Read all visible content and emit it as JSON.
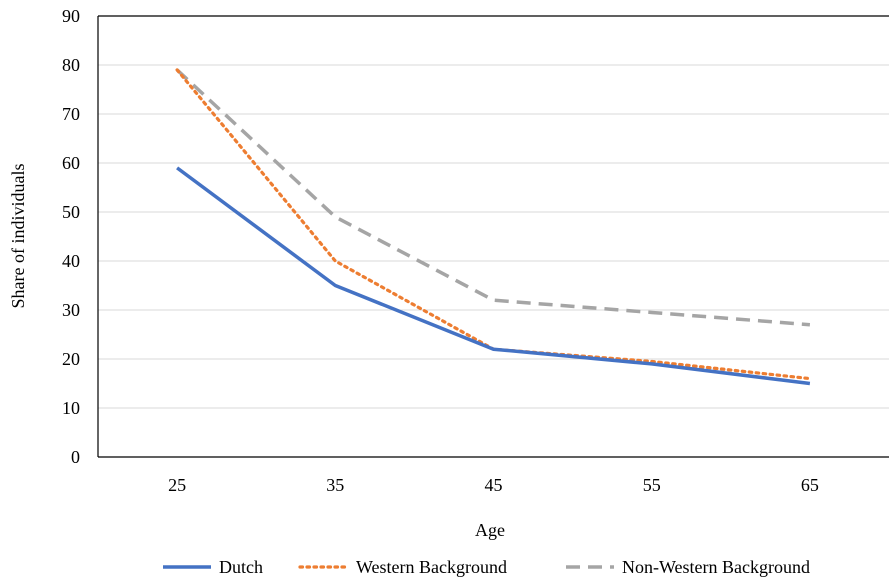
{
  "chart_data": {
    "type": "line",
    "title": "",
    "xlabel": "Age",
    "ylabel": "Share of individuals",
    "x": [
      25,
      35,
      45,
      55,
      65
    ],
    "ylim": [
      0,
      90
    ],
    "yticks": [
      0,
      10,
      20,
      30,
      40,
      50,
      60,
      70,
      80,
      90
    ],
    "grid": true,
    "legend_position": "bottom",
    "series": [
      {
        "name": "Dutch",
        "values": [
          59,
          35,
          22,
          19,
          15
        ],
        "color": "#4472C4",
        "style": "solid"
      },
      {
        "name": "Western Background",
        "values": [
          79,
          40,
          22,
          19.5,
          16
        ],
        "color": "#ED7D31",
        "style": "dotted"
      },
      {
        "name": "Non-Western Background",
        "values": [
          79,
          49,
          32,
          29.5,
          27
        ],
        "color": "#A5A5A5",
        "style": "dashed"
      }
    ]
  }
}
